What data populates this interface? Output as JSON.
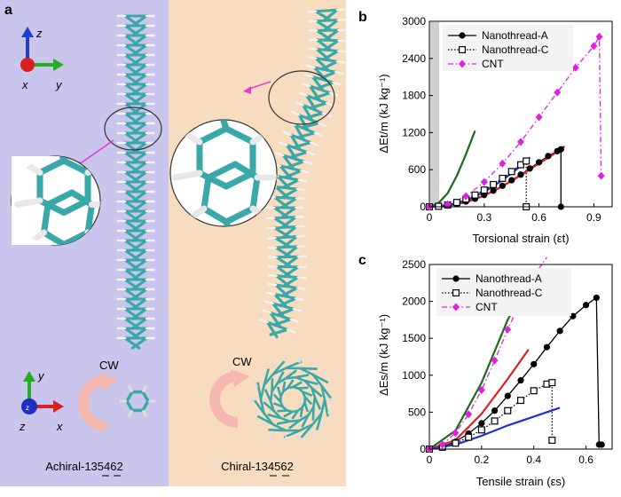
{
  "panel_a": {
    "letter": "a",
    "axes_top": {
      "z": "z",
      "x": "x",
      "y": "y"
    },
    "axes_bottom": {
      "y": "y",
      "z": "z",
      "x": "x"
    },
    "left": {
      "rotation_label": "CW",
      "caption": "Achiral-135462",
      "background": "#c9c5ec"
    },
    "right": {
      "rotation_label": "CW",
      "caption": "Chiral-134562",
      "background": "#f8dcc0"
    },
    "colors": {
      "carbon": "#3aa8a8",
      "hydrogen": "#f2f2f2",
      "arrow": "#e040d0",
      "cw_arrow": "#f5b8b0"
    }
  },
  "chart_data": [
    {
      "id": "b",
      "panel_letter": "b",
      "type": "line",
      "xlabel": "Torsional strain (εt)",
      "ylabel": "ΔEt/m (kJ kg⁻¹)",
      "xlim": [
        0,
        1.0
      ],
      "ylim": [
        0,
        3000
      ],
      "xticks": [
        0,
        0.3,
        0.6,
        0.9
      ],
      "xtick_labels": [
        "0",
        "0.3",
        "0.6",
        "0.9"
      ],
      "yticks": [
        0,
        600,
        1200,
        1800,
        2400,
        3000
      ],
      "legend_position": "top-center",
      "series": [
        {
          "name": "Nanothread-A",
          "color": "#000000",
          "marker": "circle",
          "style": "solid",
          "x": [
            0,
            0.05,
            0.1,
            0.15,
            0.2,
            0.25,
            0.3,
            0.35,
            0.4,
            0.45,
            0.5,
            0.55,
            0.6,
            0.65,
            0.7,
            0.72,
            0.72
          ],
          "y": [
            0,
            5,
            20,
            45,
            85,
            130,
            190,
            260,
            340,
            430,
            520,
            620,
            720,
            820,
            900,
            930,
            0
          ]
        },
        {
          "name": "Nanothread-C",
          "color": "#000000",
          "marker": "square-open",
          "style": "dotted",
          "x": [
            0,
            0.05,
            0.1,
            0.15,
            0.2,
            0.25,
            0.3,
            0.35,
            0.4,
            0.45,
            0.5,
            0.53,
            0.53
          ],
          "y": [
            0,
            8,
            30,
            70,
            125,
            190,
            270,
            360,
            460,
            570,
            680,
            740,
            0
          ]
        },
        {
          "name": "CNT",
          "color": "#e020e0",
          "marker": "diamond",
          "style": "dashdot",
          "x": [
            0,
            0.1,
            0.2,
            0.3,
            0.4,
            0.5,
            0.6,
            0.7,
            0.8,
            0.9,
            0.93,
            0.94
          ],
          "y": [
            0,
            40,
            170,
            400,
            700,
            1050,
            1450,
            1850,
            2250,
            2600,
            2750,
            500
          ]
        },
        {
          "color": "#1a6b1a",
          "style": "solid",
          "x": [
            0,
            0.05,
            0.1,
            0.15,
            0.2,
            0.25
          ],
          "y": [
            0,
            60,
            220,
            500,
            850,
            1230
          ]
        },
        {
          "color": "#e02020",
          "style": "solid",
          "x": [
            0,
            0.1,
            0.2,
            0.3,
            0.4,
            0.5,
            0.6,
            0.7,
            0.74
          ],
          "y": [
            0,
            15,
            70,
            180,
            330,
            510,
            700,
            890,
            980
          ]
        },
        {
          "color": "#2030d0",
          "style": "solid",
          "x": [
            0,
            0.1,
            0.2,
            0.3,
            0.4,
            0.5,
            0.55
          ],
          "y": [
            0,
            20,
            100,
            240,
            430,
            660,
            800
          ]
        }
      ]
    },
    {
      "id": "c",
      "panel_letter": "c",
      "type": "line",
      "xlabel": "Tensile strain (εs)",
      "ylabel": "ΔEs/m (kJ kg⁻¹)",
      "xlim": [
        0,
        0.7
      ],
      "ylim": [
        0,
        2500
      ],
      "xticks": [
        0,
        0.2,
        0.4,
        0.6
      ],
      "xtick_labels": [
        "0",
        "0.2",
        "0.4",
        "0.6"
      ],
      "yticks": [
        0,
        500,
        1000,
        1500,
        2000,
        2500
      ],
      "legend_position": "top-right",
      "series": [
        {
          "name": "Nanothread-A",
          "color": "#000000",
          "marker": "circle",
          "style": "solid",
          "x": [
            0,
            0.05,
            0.1,
            0.15,
            0.2,
            0.25,
            0.3,
            0.35,
            0.4,
            0.45,
            0.5,
            0.55,
            0.6,
            0.64,
            0.65,
            0.66
          ],
          "y": [
            0,
            30,
            100,
            210,
            350,
            520,
            720,
            930,
            1150,
            1380,
            1600,
            1800,
            1950,
            2050,
            60,
            60
          ]
        },
        {
          "name": "Nanothread-C",
          "color": "#000000",
          "marker": "square-open",
          "style": "dotted",
          "x": [
            0,
            0.05,
            0.1,
            0.15,
            0.2,
            0.25,
            0.3,
            0.35,
            0.4,
            0.45,
            0.47,
            0.47
          ],
          "y": [
            0,
            25,
            80,
            160,
            260,
            380,
            520,
            660,
            790,
            880,
            900,
            120
          ]
        },
        {
          "name": "CNT",
          "color": "#e020e0",
          "marker": "diamond",
          "style": "dashdot",
          "x": [
            0,
            0.05,
            0.1,
            0.15,
            0.2,
            0.25,
            0.3,
            0.35,
            0.4,
            0.45
          ],
          "y": [
            0,
            60,
            220,
            470,
            800,
            1200,
            1620,
            2000,
            2350,
            2650
          ]
        },
        {
          "color": "#1a6b1a",
          "style": "solid",
          "x": [
            0,
            0.1,
            0.2,
            0.3,
            0.4
          ],
          "y": [
            0,
            250,
            900,
            1750,
            2400
          ]
        },
        {
          "color": "#e02020",
          "style": "solid",
          "x": [
            0,
            0.1,
            0.2,
            0.3,
            0.38
          ],
          "y": [
            0,
            120,
            480,
            950,
            1350
          ]
        },
        {
          "color": "#2030d0",
          "style": "solid",
          "x": [
            0,
            0.1,
            0.2,
            0.3,
            0.4,
            0.5
          ],
          "y": [
            0,
            60,
            180,
            320,
            440,
            560
          ]
        }
      ]
    }
  ]
}
